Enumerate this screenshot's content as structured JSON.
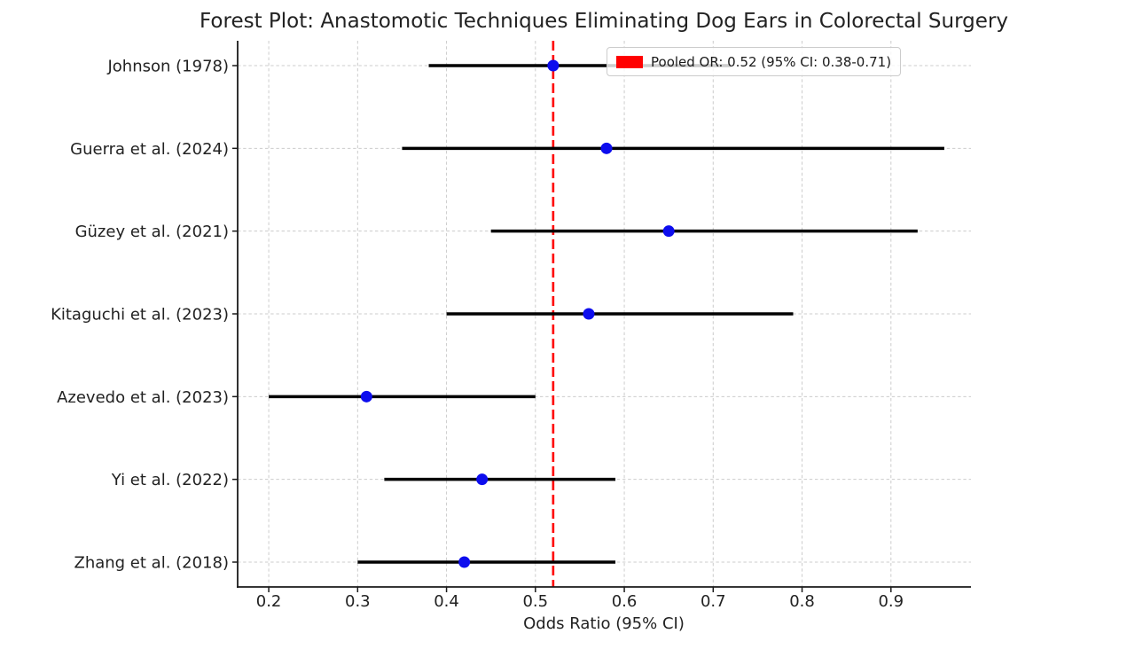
{
  "chart_data": {
    "type": "scatter",
    "subtype": "forest-plot",
    "title": "Forest Plot: Anastomotic Techniques Eliminating Dog Ears in Colorectal Surgery",
    "xlabel": "Odds Ratio (95% CI)",
    "xlim": [
      0.165,
      0.99
    ],
    "xticks": [
      0.2,
      0.3,
      0.4,
      0.5,
      0.6,
      0.7,
      0.8,
      0.9
    ],
    "grid": true,
    "legend_position": "upper right",
    "studies": [
      {
        "label": "Johnson (1978)",
        "or": 0.52,
        "ci_low": 0.38,
        "ci_high": 0.72
      },
      {
        "label": "Guerra et al. (2024)",
        "or": 0.58,
        "ci_low": 0.35,
        "ci_high": 0.96
      },
      {
        "label": "Güzey et al. (2021)",
        "or": 0.65,
        "ci_low": 0.45,
        "ci_high": 0.93
      },
      {
        "label": "Kitaguchi et al. (2023)",
        "or": 0.56,
        "ci_low": 0.4,
        "ci_high": 0.79
      },
      {
        "label": "Azevedo et al. (2023)",
        "or": 0.31,
        "ci_low": 0.2,
        "ci_high": 0.5
      },
      {
        "label": "Yi et al. (2022)",
        "or": 0.44,
        "ci_low": 0.33,
        "ci_high": 0.59
      },
      {
        "label": "Zhang et al. (2018)",
        "or": 0.42,
        "ci_low": 0.3,
        "ci_high": 0.59
      }
    ],
    "pooled": {
      "or": 0.52,
      "ci_low": 0.38,
      "ci_high": 0.71
    },
    "legend": {
      "label": "Pooled OR: 0.52 (95% CI: 0.38-0.71)"
    },
    "colors": {
      "point": "#0d0dee",
      "ci_line": "#000000",
      "pooled_line": "#ff0000",
      "legend_patch": "#ff0000",
      "grid": "#cccccc",
      "spine": "#1a1a1a",
      "text": "#222222"
    }
  }
}
